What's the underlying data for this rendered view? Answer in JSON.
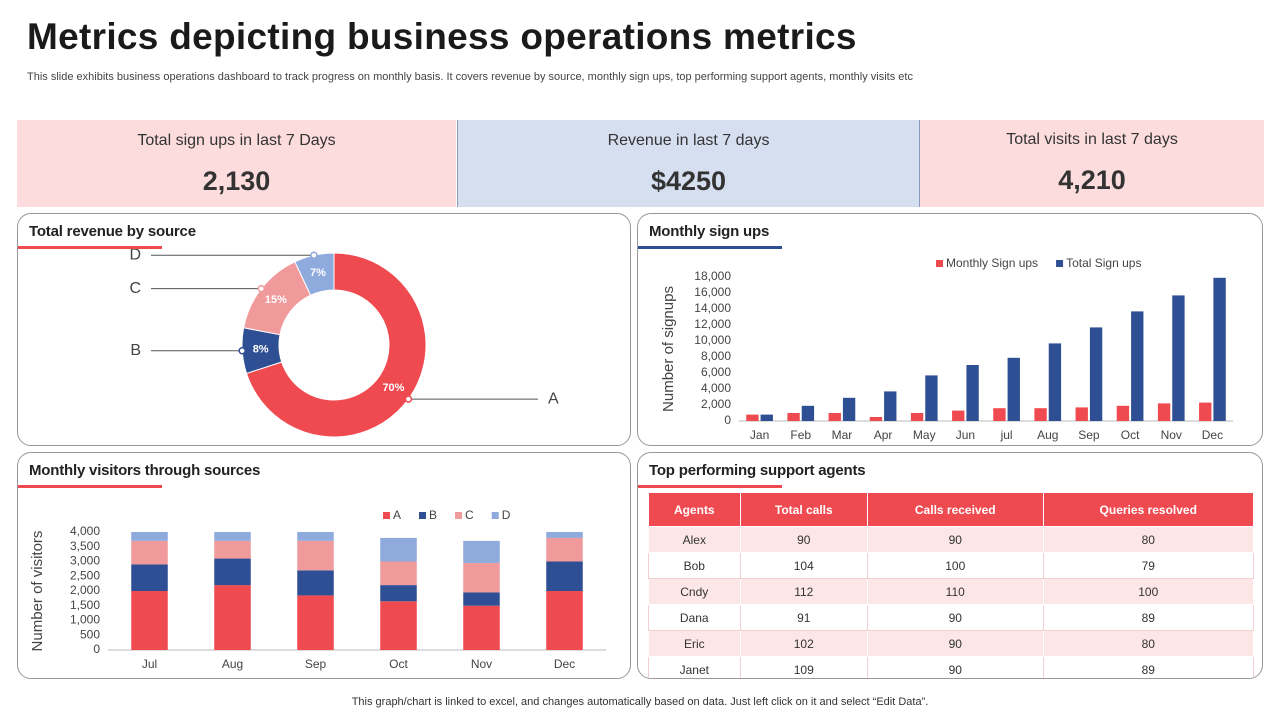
{
  "title": "Metrics depicting business operations metrics",
  "subtitle": "This slide exhibits business operations dashboard to track progress on monthly basis. It covers revenue by source, monthly sign ups, top performing support agents, monthly visits etc",
  "kpis": [
    {
      "label": "Total sign ups in last 7 Days",
      "value": "2,130"
    },
    {
      "label": "Revenue  in last 7 days",
      "value": "$4250"
    },
    {
      "label": "Total visits in last 7 days",
      "value": "4,210"
    }
  ],
  "chart_data": [
    {
      "type": "donut",
      "title": "Total revenue by source",
      "categories": [
        "A",
        "B",
        "C",
        "D"
      ],
      "values": [
        70,
        8,
        15,
        7
      ],
      "value_labels": [
        "70%",
        "8%",
        "15%",
        "7%"
      ],
      "colors": [
        "#ef4a50",
        "#2f4f94",
        "#f19a9c",
        "#8faadc"
      ]
    },
    {
      "type": "bar",
      "title": "Monthly sign ups",
      "y_label": "Number of signups",
      "categories": [
        "Jan",
        "Feb",
        "Mar",
        "Apr",
        "May",
        "Jun",
        "jul",
        "Aug",
        "Sep",
        "Oct",
        "Nov",
        "Dec"
      ],
      "series": [
        {
          "name": "Monthly Sign ups",
          "color": "#ef4a50",
          "values": [
            800,
            1000,
            1000,
            500,
            1000,
            1300,
            1600,
            1600,
            1700,
            1900,
            2200,
            2300
          ]
        },
        {
          "name": "Total Sign ups",
          "color": "#2f4f94",
          "values": [
            800,
            1900,
            2900,
            3700,
            5700,
            7000,
            7900,
            9700,
            11700,
            13700,
            15700,
            17900
          ]
        }
      ],
      "ylim": [
        0,
        18000
      ],
      "yticks": [
        0,
        {
          "value": 2000,
          "label": "2,000"
        },
        {
          "value": 4000,
          "label": "4,000"
        },
        {
          "value": 6000,
          "label": "6,000"
        },
        {
          "value": 8000,
          "label": "8,000"
        },
        {
          "value": 10000,
          "label": "10,000"
        },
        {
          "value": 12000,
          "label": "12,000"
        },
        {
          "value": 14000,
          "label": "14,000"
        },
        {
          "value": 16000,
          "label": "16,000"
        },
        {
          "value": 18000,
          "label": "18,000"
        }
      ],
      "grid": false
    },
    {
      "type": "stacked_bar",
      "title": "Monthly visitors through sources",
      "y_label": "Number of visitors",
      "categories": [
        "Jul",
        "Aug",
        "Sep",
        "Oct",
        "Nov",
        "Dec"
      ],
      "series": [
        {
          "name": "A",
          "color": "#ef4a50",
          "values": [
            2000,
            2200,
            1850,
            1650,
            1500,
            2000
          ]
        },
        {
          "name": "B",
          "color": "#2f4f94",
          "values": [
            900,
            900,
            850,
            550,
            450,
            1000
          ]
        },
        {
          "name": "C",
          "color": "#f19a9c",
          "values": [
            800,
            600,
            1000,
            800,
            1000,
            800
          ]
        },
        {
          "name": "D",
          "color": "#8faadc",
          "values": [
            300,
            300,
            300,
            800,
            750,
            200
          ]
        }
      ],
      "ylim": [
        0,
        4000
      ],
      "yticks": [
        0,
        500,
        {
          "value": 1000,
          "label": "1,000"
        },
        {
          "value": 1500,
          "label": "1,500"
        },
        {
          "value": 2000,
          "label": "2,000"
        },
        {
          "value": 2500,
          "label": "2,500"
        },
        {
          "value": 3000,
          "label": "3,000"
        },
        {
          "value": 3500,
          "label": "3,500"
        },
        {
          "value": 4000,
          "label": "4,000"
        }
      ],
      "grid": false
    }
  ],
  "agents": {
    "title": "Top performing support agents",
    "columns": [
      "Agents",
      "Total calls",
      "Calls received",
      "Queries resolved"
    ],
    "rows": [
      [
        "Alex",
        90,
        90,
        80
      ],
      [
        "Bob",
        104,
        100,
        79
      ],
      [
        "Cndy",
        112,
        110,
        100
      ],
      [
        "Dana",
        91,
        90,
        89
      ],
      [
        "Eric",
        102,
        90,
        80
      ],
      [
        "Janet",
        109,
        90,
        89
      ]
    ]
  },
  "footer": "This graph/chart is linked to excel,  and changes automatically based on data. Just left click on it and select “Edit Data”."
}
